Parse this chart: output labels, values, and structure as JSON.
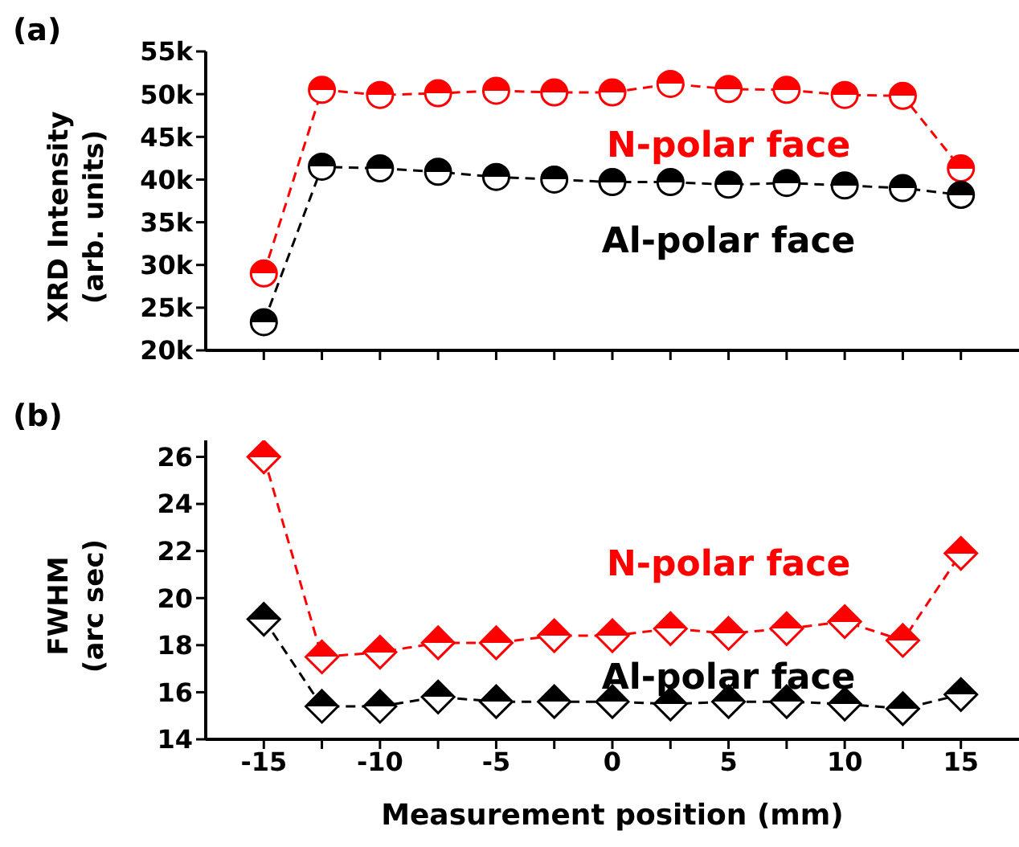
{
  "chart_data": [
    {
      "type": "line",
      "title": "(a)",
      "ylabel": "XRD Intensity\n(arb. units)",
      "marker": "circle",
      "line_style": "dashed",
      "legend": "right",
      "tick_labels": "y",
      "x": [
        -15,
        -12.5,
        -10,
        -7.5,
        -5,
        -2.5,
        0,
        2.5,
        5,
        7.5,
        10,
        12.5,
        15
      ],
      "xlim": [
        -17.5,
        17.5
      ],
      "xticks": [
        {
          "value": -15,
          "label": null
        },
        {
          "value": -12.5,
          "label": null
        },
        {
          "value": -10,
          "label": null
        },
        {
          "value": -7.5,
          "label": null
        },
        {
          "value": -5,
          "label": null
        },
        {
          "value": -2.5,
          "label": null
        },
        {
          "value": 0,
          "label": null
        },
        {
          "value": 2.5,
          "label": null
        },
        {
          "value": 5,
          "label": null
        },
        {
          "value": 7.5,
          "label": null
        },
        {
          "value": 10,
          "label": null
        },
        {
          "value": 12.5,
          "label": null
        },
        {
          "value": 15,
          "label": null
        }
      ],
      "ylim": [
        20000,
        55000
      ],
      "yticks": [
        {
          "value": 20000,
          "label": "20k"
        },
        {
          "value": 25000,
          "label": "25k"
        },
        {
          "value": 30000,
          "label": "30k"
        },
        {
          "value": 35000,
          "label": "35k"
        },
        {
          "value": 40000,
          "label": "40k"
        },
        {
          "value": 45000,
          "label": "45k"
        },
        {
          "value": 50000,
          "label": "50k"
        },
        {
          "value": 55000,
          "label": "55k"
        }
      ],
      "series": [
        {
          "name": "N-polar face",
          "color": "#ff0000",
          "values": [
            29000,
            50500,
            49900,
            50100,
            50400,
            50200,
            50200,
            51200,
            50600,
            50500,
            49900,
            49800,
            41300
          ]
        },
        {
          "name": "Al-polar face",
          "color": "#000000",
          "values": [
            23300,
            41500,
            41300,
            40900,
            40300,
            40000,
            39700,
            39700,
            39400,
            39600,
            39300,
            39000,
            38200
          ]
        }
      ]
    },
    {
      "type": "line",
      "title": "(b)",
      "xlabel": "Measurement position (mm)",
      "ylabel": "FWHM\n(arc sec)",
      "marker": "diamond",
      "line_style": "dashed",
      "legend": "right",
      "x": [
        -15,
        -12.5,
        -10,
        -7.5,
        -5,
        -2.5,
        0,
        2.5,
        5,
        7.5,
        10,
        12.5,
        15
      ],
      "xlim": [
        -17.5,
        17.5
      ],
      "xticks": [
        -15,
        {
          "value": -12.5,
          "label": null
        },
        -10,
        {
          "value": -7.5,
          "label": null
        },
        -5,
        {
          "value": -2.5,
          "label": null
        },
        0,
        {
          "value": 2.5,
          "label": null
        },
        5,
        {
          "value": 7.5,
          "label": null
        },
        10,
        {
          "value": 12.5,
          "label": null
        },
        15
      ],
      "ylim": [
        14,
        26.7
      ],
      "yticks": [
        14,
        16,
        18,
        20,
        22,
        24,
        26
      ],
      "series": [
        {
          "name": "N-polar face",
          "color": "#ff0000",
          "values": [
            26.0,
            17.5,
            17.7,
            18.1,
            18.1,
            18.4,
            18.4,
            18.7,
            18.5,
            18.7,
            19.0,
            18.2,
            21.9
          ]
        },
        {
          "name": "Al-polar face",
          "color": "#000000",
          "values": [
            19.1,
            15.4,
            15.4,
            15.8,
            15.6,
            15.6,
            15.6,
            15.5,
            15.6,
            15.6,
            15.5,
            15.3,
            15.9
          ]
        }
      ]
    }
  ]
}
